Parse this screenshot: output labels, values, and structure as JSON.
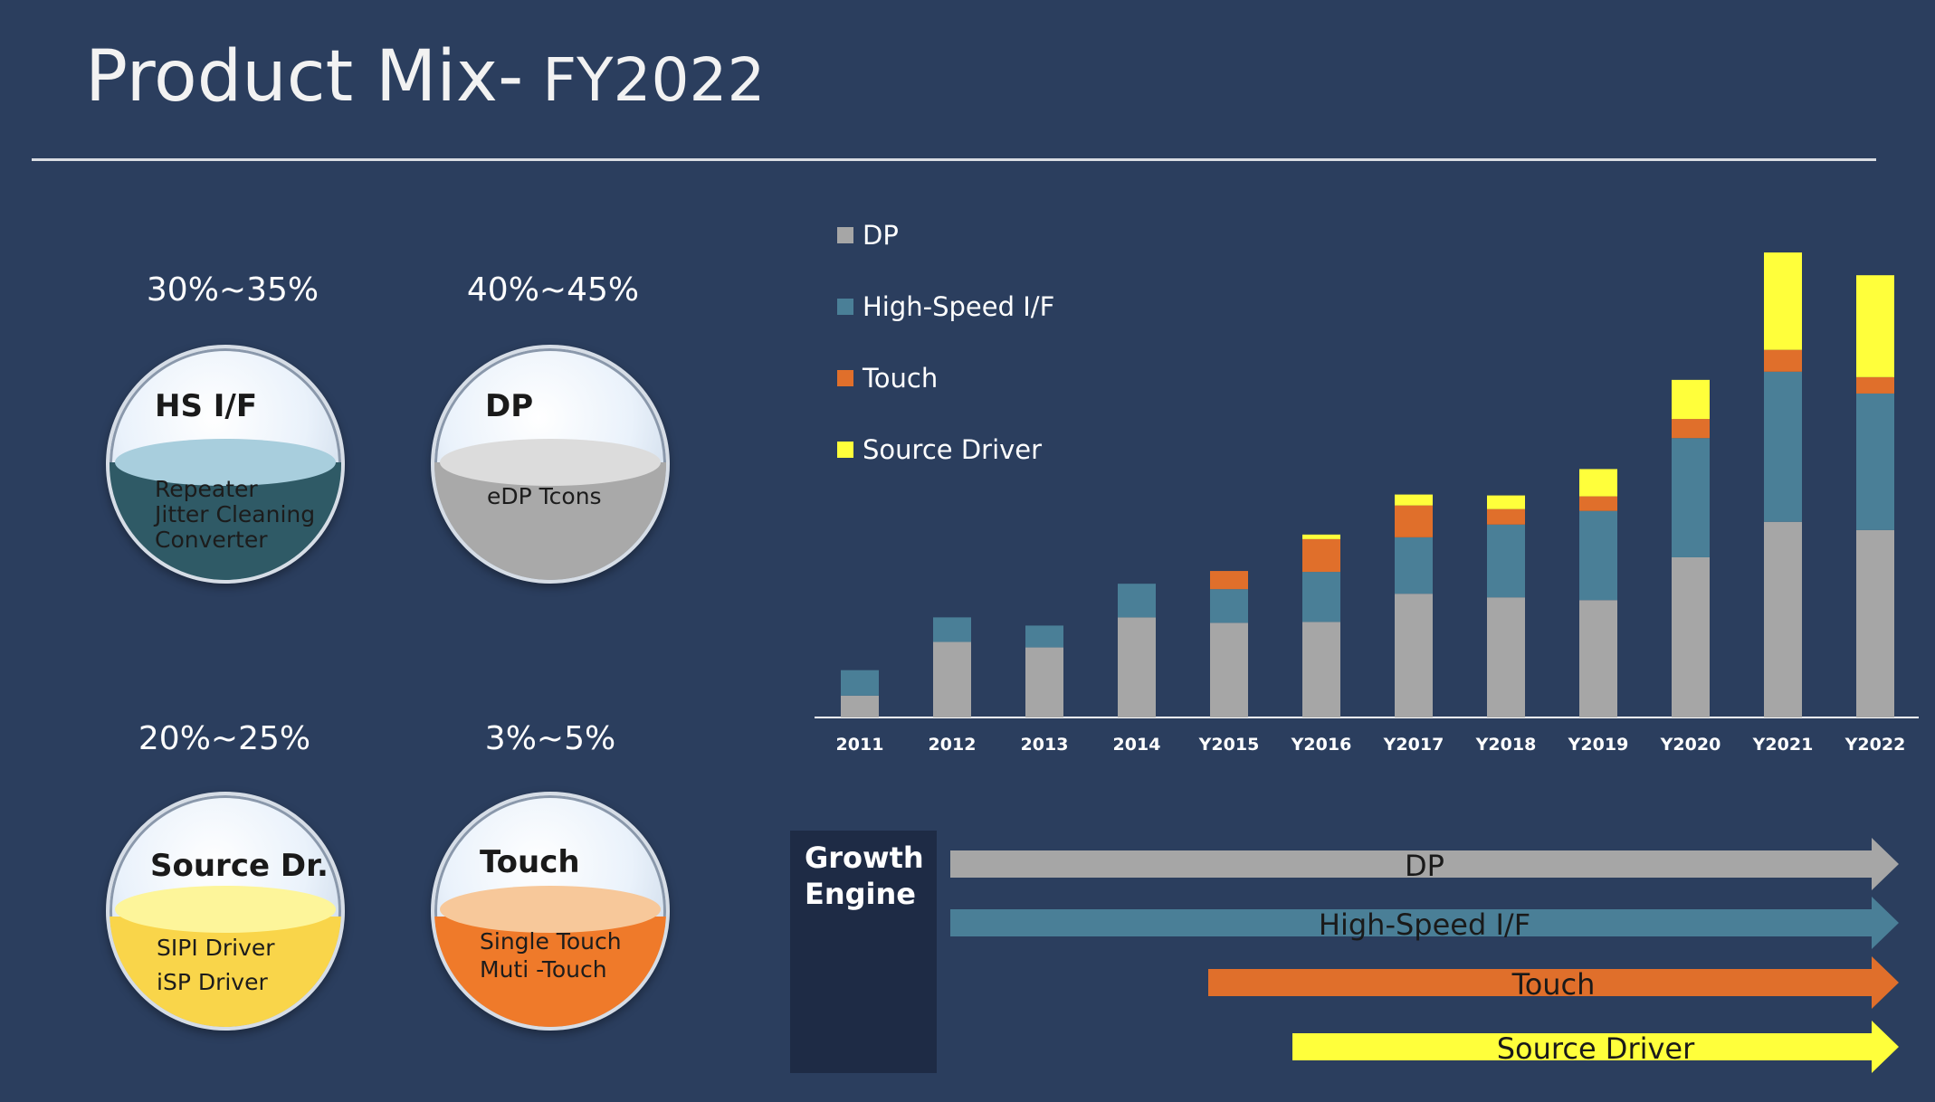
{
  "slide": {
    "title_main": "Product Mix-",
    "title_sub": " FY2022"
  },
  "products": [
    {
      "pct": "30%~35%",
      "name": "HS I/F",
      "lines": [
        "Repeater",
        "Jitter Cleaning",
        "Converter"
      ],
      "fill": "#2f5a66",
      "surface": "#a8cedd"
    },
    {
      "pct": "40%~45%",
      "name": "DP",
      "lines": [
        "eDP Tcons"
      ],
      "fill": "#a9a9a9",
      "surface": "#dcdcdc"
    },
    {
      "pct": "20%~25%",
      "name": "Source Dr.",
      "lines": [
        "SIPI Driver",
        "iSP Driver"
      ],
      "fill": "#f9d54a",
      "surface": "#fdf59a"
    },
    {
      "pct": "3%~5%",
      "name": "Touch",
      "lines": [
        "Single Touch",
        "Muti -Touch"
      ],
      "fill": "#ef7a2a",
      "surface": "#f7c89a"
    }
  ],
  "chart_data": {
    "type": "bar",
    "stacked": true,
    "categories": [
      "2011",
      "2012",
      "2013",
      "2014",
      "Y2015",
      "Y2016",
      "Y2017",
      "Y2018",
      "Y2019",
      "Y2020",
      "Y2021",
      "Y2022"
    ],
    "series": [
      {
        "name": "DP",
        "color": "#a6a6a6",
        "values": [
          24,
          83,
          77,
          110,
          104,
          105,
          136,
          132,
          129,
          176,
          215,
          206
        ]
      },
      {
        "name": "High-Speed I/F",
        "color": "#4a7f97",
        "values": [
          28,
          27,
          24,
          37,
          37,
          55,
          62,
          80,
          98,
          131,
          165,
          150
        ]
      },
      {
        "name": "Touch",
        "color": "#e06f2b",
        "values": [
          0,
          0,
          0,
          0,
          20,
          36,
          35,
          17,
          16,
          21,
          24,
          18
        ]
      },
      {
        "name": "Source Driver",
        "color": "#ffff3b",
        "values": [
          0,
          0,
          0,
          0,
          0,
          5,
          12,
          15,
          30,
          43,
          107,
          112
        ]
      }
    ],
    "ylim": [
      0,
      520
    ],
    "legend_position": "top-left",
    "grid": false
  },
  "growth": {
    "label_line1": "Growth",
    "label_line2": "Engine",
    "arrows": [
      {
        "label": "DP",
        "color": "#a6a6a6"
      },
      {
        "label": "High-Speed I/F",
        "color": "#4a7f97"
      },
      {
        "label": "Touch",
        "color": "#e06f2b"
      },
      {
        "label": "Source Driver",
        "color": "#ffff3b"
      }
    ]
  }
}
